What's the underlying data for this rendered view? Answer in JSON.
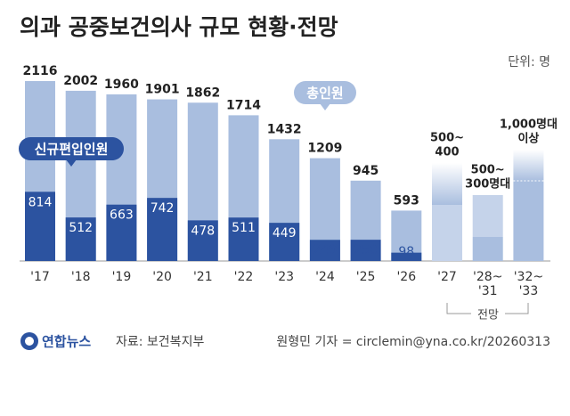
{
  "chart_data": {
    "type": "bar",
    "title": "의과 공중보건의사 규모 현황·전망",
    "unit": "단위: 명",
    "categories": [
      "'17",
      "'18",
      "'19",
      "'20",
      "'21",
      "'22",
      "'23",
      "'24",
      "'25",
      "'26"
    ],
    "series": [
      {
        "name": "총인원",
        "color": "#a9bedf",
        "values": [
          2116,
          2002,
          1960,
          1901,
          1862,
          1714,
          1432,
          1209,
          945,
          593
        ]
      },
      {
        "name": "신규편입인원",
        "color": "#2c53a0",
        "values": [
          814,
          512,
          663,
          742,
          478,
          511,
          449,
          249,
          250,
          98
        ]
      }
    ],
    "ylim": [
      0,
      2200
    ],
    "projection": {
      "label": "전망",
      "periods": [
        {
          "category_lines": [
            "'27"
          ],
          "value_lines": [
            "500~",
            "400"
          ]
        },
        {
          "category_lines": [
            "'28~",
            "'31"
          ],
          "value_lines": [
            "500~",
            "300명대"
          ]
        },
        {
          "category_lines": [
            "'32~",
            "'33"
          ],
          "value_lines": [
            "1,000명대",
            "이상"
          ]
        }
      ]
    },
    "logo": "연합뉴스",
    "source": "자료: 보건복지부",
    "credit": "원형민 기자 = circlemin@yna.co.kr/20260313"
  }
}
